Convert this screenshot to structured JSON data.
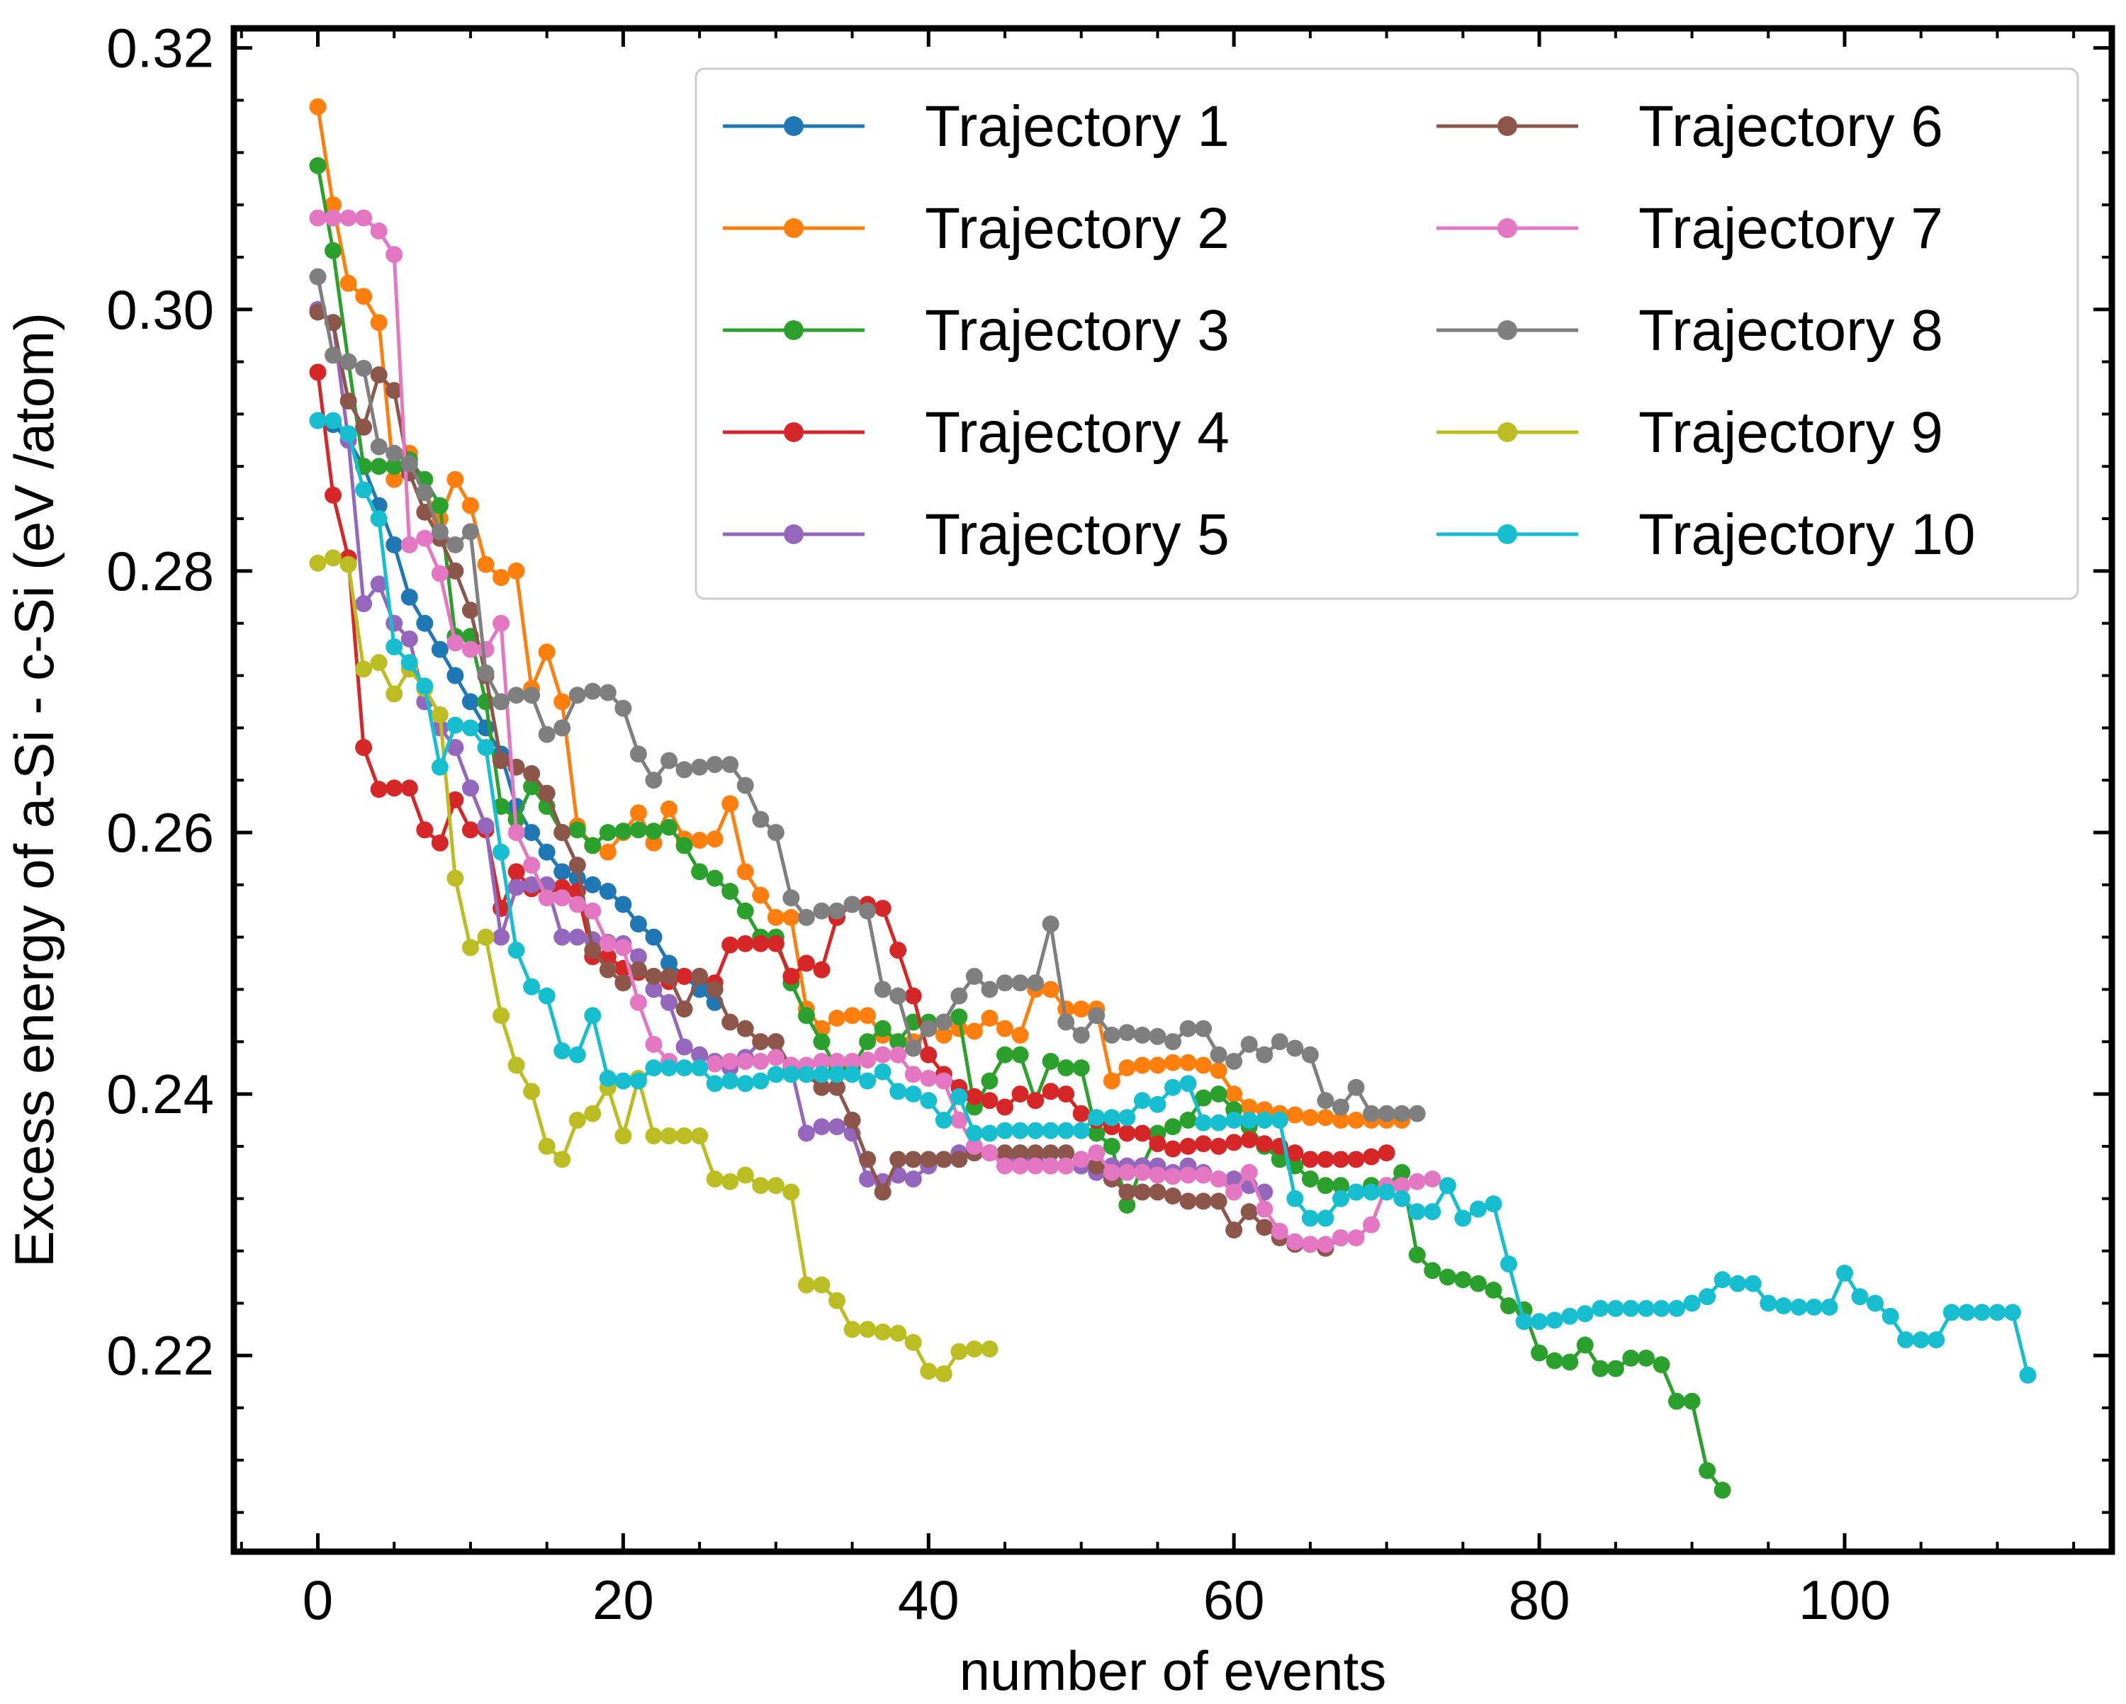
{
  "chart_data": {
    "type": "line",
    "title": "",
    "xlabel": "number of events",
    "ylabel": "Excess energy of a-Si - c-Si (eV /atom)",
    "xlim": [
      -5.5,
      117.5
    ],
    "ylim": [
      0.205,
      0.3215
    ],
    "xticks": [
      0,
      20,
      40,
      60,
      80,
      100
    ],
    "xtick_labels": [
      "0",
      "20",
      "40",
      "60",
      "80",
      "100"
    ],
    "yticks": [
      0.22,
      0.24,
      0.26,
      0.28,
      0.3,
      0.32
    ],
    "ytick_labels": [
      "0.22",
      "0.24",
      "0.26",
      "0.28",
      "0.30",
      "0.32"
    ],
    "grid": false,
    "legend_position": "top-right",
    "series": [
      {
        "name": "Trajectory 1",
        "color": "#1f77b4",
        "values": [
          0.2915,
          0.2912,
          0.29,
          0.288,
          0.285,
          0.282,
          0.278,
          0.276,
          0.274,
          0.272,
          0.27,
          0.268,
          0.266,
          0.262,
          0.26,
          0.2585,
          0.257,
          0.2565,
          0.256,
          0.2555,
          0.2545,
          0.253,
          0.252,
          0.25,
          0.249,
          0.248,
          0.247
        ]
      },
      {
        "name": "Trajectory 2",
        "color": "#ff7f0e",
        "values": [
          0.3155,
          0.308,
          0.302,
          0.301,
          0.299,
          0.287,
          0.289,
          0.286,
          0.284,
          0.287,
          0.285,
          0.2805,
          0.2795,
          0.28,
          0.271,
          0.2738,
          0.27,
          0.2605,
          0.259,
          0.2585,
          0.26,
          0.2615,
          0.2592,
          0.2618,
          0.2595,
          0.2594,
          0.2595,
          0.2622,
          0.257,
          0.2552,
          0.2535,
          0.2535,
          0.2465,
          0.245,
          0.2458,
          0.246,
          0.246,
          0.2445,
          0.244,
          0.244,
          0.245,
          0.2445,
          0.245,
          0.2448,
          0.2458,
          0.245,
          0.2445,
          0.248,
          0.248,
          0.2465,
          0.2465,
          0.2465,
          0.241,
          0.242,
          0.2422,
          0.2422,
          0.2424,
          0.2424,
          0.2422,
          0.2418,
          0.24,
          0.239,
          0.2388,
          0.2385,
          0.2384,
          0.2382,
          0.2382,
          0.238,
          0.238,
          0.238,
          0.238,
          0.238
        ]
      },
      {
        "name": "Trajectory 3",
        "color": "#2ca02c",
        "values": [
          0.311,
          0.3045,
          0.296,
          0.288,
          0.288,
          0.288,
          0.2885,
          0.287,
          0.285,
          0.275,
          0.275,
          0.27,
          0.262,
          0.261,
          0.2635,
          0.262,
          0.26,
          0.2602,
          0.259,
          0.26,
          0.2601,
          0.2602,
          0.2601,
          0.2604,
          0.259,
          0.257,
          0.2565,
          0.2555,
          0.254,
          0.252,
          0.252,
          0.2485,
          0.246,
          0.244,
          0.242,
          0.242,
          0.244,
          0.245,
          0.244,
          0.2455,
          0.2455,
          0.2455,
          0.2459,
          0.239,
          0.241,
          0.243,
          0.243,
          0.2395,
          0.2425,
          0.242,
          0.242,
          0.237,
          0.236,
          0.2315,
          0.2345,
          0.237,
          0.2375,
          0.238,
          0.2397,
          0.24,
          0.2388,
          0.2375,
          0.236,
          0.235,
          0.2345,
          0.2335,
          0.233,
          0.233,
          0.2325,
          0.233,
          0.233,
          0.234,
          0.2277,
          0.2265,
          0.226,
          0.2258,
          0.2255,
          0.225,
          0.2238,
          0.2235,
          0.2202,
          0.2196,
          0.2195,
          0.2208,
          0.219,
          0.219,
          0.2198,
          0.2198,
          0.2193,
          0.2165,
          0.2165,
          0.2112,
          0.2097
        ]
      },
      {
        "name": "Trajectory 4",
        "color": "#d62728",
        "values": [
          0.2952,
          0.2858,
          0.281,
          0.2665,
          0.2633,
          0.2634,
          0.2634,
          0.2602,
          0.2592,
          0.2625,
          0.2602,
          0.2602,
          0.2542,
          0.257,
          0.2557,
          0.2557,
          0.2558,
          0.2555,
          0.2505,
          0.2505,
          0.2496,
          0.2493,
          0.249,
          0.2486,
          0.249,
          0.249,
          0.2485,
          0.2514,
          0.2515,
          0.2515,
          0.2515,
          0.249,
          0.25,
          0.2495,
          0.2535,
          0.2545,
          0.2545,
          0.2542,
          0.251,
          0.2475,
          0.243,
          0.2415,
          0.2405,
          0.2398,
          0.2395,
          0.239,
          0.24,
          0.2395,
          0.2402,
          0.24,
          0.2385,
          0.238,
          0.2375,
          0.237,
          0.237,
          0.2362,
          0.2358,
          0.236,
          0.2362,
          0.236,
          0.2363,
          0.2365,
          0.2362,
          0.236,
          0.2355,
          0.235,
          0.235,
          0.235,
          0.235,
          0.2352,
          0.2355
        ]
      },
      {
        "name": "Trajectory 5",
        "color": "#9467bd",
        "values": [
          0.3,
          0.299,
          0.29,
          0.2775,
          0.279,
          0.276,
          0.2748,
          0.27,
          0.268,
          0.2665,
          0.2634,
          0.2605,
          0.252,
          0.2558,
          0.256,
          0.256,
          0.252,
          0.252,
          0.2518,
          0.2516,
          0.2515,
          0.2505,
          0.248,
          0.247,
          0.2436,
          0.243,
          0.2425,
          0.242,
          0.2428,
          0.244,
          0.244,
          0.242,
          0.237,
          0.2375,
          0.2375,
          0.237,
          0.2335,
          0.2333,
          0.2338,
          0.2335,
          0.2345,
          0.235,
          0.2355,
          0.2355,
          0.2355,
          0.235,
          0.235,
          0.235,
          0.2345,
          0.2345,
          0.2345,
          0.234,
          0.2345,
          0.2345,
          0.2345,
          0.2345,
          0.234,
          0.2345,
          0.234,
          0.2335,
          0.2335,
          0.233,
          0.2325
        ]
      },
      {
        "name": "Trajectory 6",
        "color": "#8c564b",
        "values": [
          0.2998,
          0.299,
          0.293,
          0.291,
          0.295,
          0.2938,
          0.2875,
          0.2845,
          0.2825,
          0.28,
          0.277,
          0.272,
          0.2655,
          0.265,
          0.2645,
          0.263,
          0.26,
          0.2575,
          0.251,
          0.2495,
          0.2485,
          0.2495,
          0.249,
          0.249,
          0.2465,
          0.249,
          0.248,
          0.2455,
          0.245,
          0.244,
          0.244,
          0.242,
          0.2415,
          0.2405,
          0.2405,
          0.238,
          0.235,
          0.2325,
          0.235,
          0.235,
          0.235,
          0.235,
          0.235,
          0.2355,
          0.2355,
          0.2355,
          0.2355,
          0.2355,
          0.2355,
          0.2355,
          0.235,
          0.2345,
          0.2335,
          0.2325,
          0.2325,
          0.2325,
          0.2322,
          0.2318,
          0.2318,
          0.2318,
          0.2296,
          0.231,
          0.2298,
          0.229,
          0.2285,
          0.2285,
          0.2282,
          0.229
        ]
      },
      {
        "name": "Trajectory 7",
        "color": "#e377c2",
        "values": [
          0.307,
          0.307,
          0.307,
          0.307,
          0.306,
          0.3042,
          0.282,
          0.2825,
          0.2798,
          0.2745,
          0.274,
          0.274,
          0.276,
          0.26,
          0.2575,
          0.255,
          0.255,
          0.2545,
          0.254,
          0.2515,
          0.2512,
          0.247,
          0.2438,
          0.2425,
          0.242,
          0.242,
          0.2423,
          0.2425,
          0.2425,
          0.2425,
          0.2428,
          0.2422,
          0.2422,
          0.2425,
          0.2425,
          0.2425,
          0.2426,
          0.243,
          0.243,
          0.2415,
          0.2412,
          0.241,
          0.238,
          0.236,
          0.2355,
          0.2345,
          0.2345,
          0.2345,
          0.2345,
          0.2345,
          0.235,
          0.2355,
          0.234,
          0.234,
          0.234,
          0.2338,
          0.2337,
          0.2338,
          0.2338,
          0.2335,
          0.2325,
          0.234,
          0.2312,
          0.2295,
          0.2287,
          0.2285,
          0.2285,
          0.229,
          0.229,
          0.23,
          0.233,
          0.233,
          0.2333,
          0.2335
        ]
      },
      {
        "name": "Trajectory 8",
        "color": "#7f7f7f",
        "values": [
          0.3025,
          0.2965,
          0.296,
          0.2955,
          0.2895,
          0.289,
          0.2882,
          0.286,
          0.283,
          0.282,
          0.283,
          0.2722,
          0.27,
          0.2705,
          0.2705,
          0.2675,
          0.268,
          0.2705,
          0.2708,
          0.2707,
          0.2695,
          0.266,
          0.264,
          0.2655,
          0.2648,
          0.265,
          0.2652,
          0.2652,
          0.2636,
          0.261,
          0.26,
          0.255,
          0.2535,
          0.254,
          0.254,
          0.2545,
          0.254,
          0.248,
          0.2475,
          0.2435,
          0.245,
          0.2455,
          0.2475,
          0.249,
          0.248,
          0.2485,
          0.2485,
          0.2485,
          0.253,
          0.2455,
          0.2445,
          0.246,
          0.2445,
          0.2447,
          0.2445,
          0.2444,
          0.244,
          0.245,
          0.245,
          0.243,
          0.2425,
          0.2438,
          0.243,
          0.244,
          0.2435,
          0.243,
          0.2395,
          0.239,
          0.2405,
          0.2385,
          0.2385,
          0.2385,
          0.2385
        ]
      },
      {
        "name": "Trajectory 9",
        "color": "#bcbd22",
        "values": [
          0.2806,
          0.281,
          0.2805,
          0.2725,
          0.273,
          0.2706,
          0.2725,
          0.271,
          0.269,
          0.2565,
          0.2512,
          0.252,
          0.246,
          0.2422,
          0.2402,
          0.236,
          0.235,
          0.238,
          0.2385,
          0.2405,
          0.2368,
          0.2412,
          0.2368,
          0.2368,
          0.2368,
          0.2368,
          0.2335,
          0.2333,
          0.2338,
          0.233,
          0.233,
          0.2325,
          0.2254,
          0.2254,
          0.2242,
          0.222,
          0.222,
          0.2218,
          0.2217,
          0.221,
          0.2188,
          0.2186,
          0.2203,
          0.2205,
          0.2205
        ]
      },
      {
        "name": "Trajectory 10",
        "color": "#17becf",
        "values": [
          0.2915,
          0.2915,
          0.2905,
          0.2862,
          0.284,
          0.2742,
          0.273,
          0.2712,
          0.265,
          0.2682,
          0.268,
          0.2665,
          0.2585,
          0.251,
          0.2482,
          0.2475,
          0.2433,
          0.243,
          0.246,
          0.2412,
          0.241,
          0.241,
          0.242,
          0.242,
          0.242,
          0.242,
          0.2408,
          0.241,
          0.2408,
          0.241,
          0.2415,
          0.2415,
          0.2415,
          0.2415,
          0.2415,
          0.2415,
          0.241,
          0.2417,
          0.2402,
          0.24,
          0.2395,
          0.238,
          0.2398,
          0.237,
          0.237,
          0.2372,
          0.2372,
          0.2372,
          0.2372,
          0.2372,
          0.2372,
          0.2382,
          0.2382,
          0.2382,
          0.2395,
          0.2392,
          0.2405,
          0.2408,
          0.2378,
          0.2378,
          0.238,
          0.238,
          0.238,
          0.238,
          0.232,
          0.2305,
          0.2305,
          0.232,
          0.2325,
          0.2325,
          0.2325,
          0.232,
          0.231,
          0.231,
          0.233,
          0.2305,
          0.2312,
          0.2316,
          0.227,
          0.2226,
          0.2226,
          0.2227,
          0.223,
          0.2232,
          0.2236,
          0.2236,
          0.2236,
          0.2236,
          0.2236,
          0.2236,
          0.224,
          0.2245,
          0.2258,
          0.2255,
          0.2255,
          0.224,
          0.2238,
          0.2237,
          0.2237,
          0.2237,
          0.2263,
          0.2245,
          0.224,
          0.223,
          0.2212,
          0.2212,
          0.2212,
          0.2233,
          0.2233,
          0.2233,
          0.2233,
          0.2233,
          0.2185
        ]
      }
    ]
  }
}
